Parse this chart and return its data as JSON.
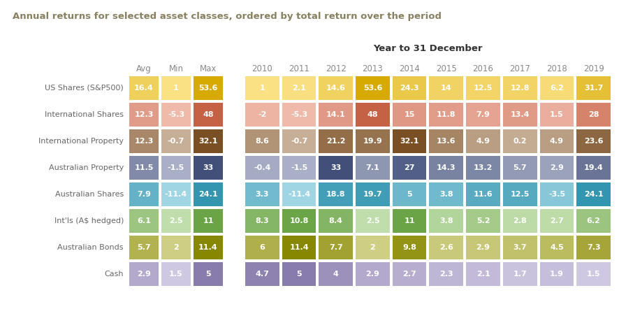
{
  "title": "Annual returns for selected asset classes, ordered by total return over the period",
  "subtitle": "Year to 31 December",
  "row_labels": [
    "US Shares (S&P500)",
    "International Shares",
    "International Property",
    "Australian Property",
    "Australian Shares",
    "Int'ls (A$ hedged)",
    "Australian Bonds",
    "Cash"
  ],
  "col_headers_stats": [
    "Avg",
    "Min",
    "Max"
  ],
  "col_headers_years": [
    "2010",
    "2011",
    "2012",
    "2013",
    "2014",
    "2015",
    "2016",
    "2017",
    "2018",
    "2019"
  ],
  "stats_data": [
    [
      16.4,
      1,
      53.6
    ],
    [
      12.3,
      -5.3,
      48
    ],
    [
      12.3,
      -0.7,
      32.1
    ],
    [
      11.5,
      -1.5,
      33
    ],
    [
      7.9,
      -11.4,
      24.1
    ],
    [
      6.1,
      2.5,
      11
    ],
    [
      5.7,
      2,
      11.4
    ],
    [
      2.9,
      1.5,
      5
    ]
  ],
  "year_data": [
    [
      1,
      2.1,
      14.6,
      53.6,
      24.3,
      14,
      12.5,
      12.8,
      6.2,
      31.7
    ],
    [
      -2,
      -5.3,
      14.1,
      48,
      15,
      11.8,
      7.9,
      13.4,
      1.5,
      28
    ],
    [
      8.6,
      -0.7,
      21.2,
      19.9,
      32.1,
      13.6,
      4.9,
      0.2,
      4.9,
      23.6
    ],
    [
      -0.4,
      -1.5,
      33,
      7.1,
      27,
      14.3,
      13.2,
      5.7,
      2.9,
      19.4
    ],
    [
      3.3,
      -11.4,
      18.8,
      19.7,
      5,
      3.8,
      11.6,
      12.5,
      -3.5,
      24.1
    ],
    [
      8.3,
      10.8,
      8.4,
      2.5,
      11,
      3.8,
      5.2,
      2.8,
      2.7,
      6.2
    ],
    [
      6,
      11.4,
      7.7,
      2,
      9.8,
      2.6,
      2.9,
      3.7,
      4.5,
      7.3
    ],
    [
      4.7,
      5,
      4,
      2.9,
      2.7,
      2.3,
      2.1,
      1.7,
      1.9,
      1.5
    ]
  ],
  "row_colors": [
    "#F5C200",
    "#E07050",
    "#8B5A28",
    "#4A5A8A",
    "#3AAAC8",
    "#7ABB50",
    "#9A9A00",
    "#9B8EC4"
  ],
  "background_color": "#FFFFFF",
  "light_blend": 0.52,
  "dark_blend": 0.12
}
